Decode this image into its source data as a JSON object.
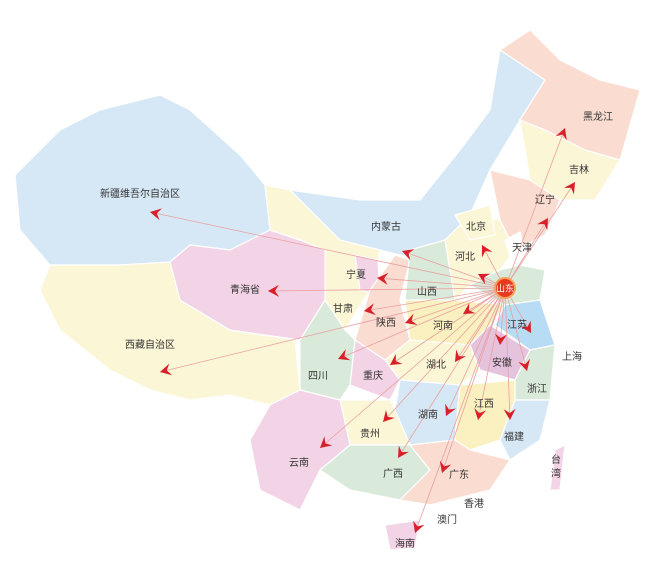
{
  "hub": {
    "name": "山东",
    "color": "#e8381f"
  },
  "arrow_color": "#d9202a",
  "line_color": "#e9a0a0",
  "provinces": [
    {
      "id": "xinjiang",
      "label": "新疆维吾尔自治区",
      "color": "#d6e8f5",
      "arrow": true
    },
    {
      "id": "tibet",
      "label": "西藏自治区",
      "color": "#fbf6d6",
      "arrow": true
    },
    {
      "id": "qinghai",
      "label": "青海省",
      "color": "#f3d4e6",
      "arrow": true
    },
    {
      "id": "gansu",
      "label": "甘肃",
      "color": "#fbf6d6",
      "arrow": true
    },
    {
      "id": "neimenggu",
      "label": "内蒙古",
      "color": "#d6e8f5",
      "arrow": true
    },
    {
      "id": "heilongjiang",
      "label": "黑龙江",
      "color": "#fadcd0",
      "arrow": true
    },
    {
      "id": "jilin",
      "label": "吉林",
      "color": "#fbf6d6",
      "arrow": true
    },
    {
      "id": "liaoning",
      "label": "辽宁",
      "color": "#fadcd0",
      "arrow": true
    },
    {
      "id": "ningxia",
      "label": "宁夏",
      "color": "#f3d4e6",
      "arrow": true
    },
    {
      "id": "shaanxi",
      "label": "陕西",
      "color": "#fadcd0",
      "arrow": true
    },
    {
      "id": "shanxi",
      "label": "山西",
      "color": "#d9eadb",
      "arrow": false
    },
    {
      "id": "hebei",
      "label": "河北",
      "color": "#fbf6d6",
      "arrow": true
    },
    {
      "id": "beijing",
      "label": "北京",
      "color": "#fbf6d6",
      "arrow": true
    },
    {
      "id": "tianjin",
      "label": "天津",
      "color": "#ffffff",
      "arrow": false
    },
    {
      "id": "shandong",
      "label": "",
      "color": "#d9eadb",
      "arrow": false
    },
    {
      "id": "henan",
      "label": "河南",
      "color": "#fbf0c0",
      "arrow": true
    },
    {
      "id": "jiangsu",
      "label": "江苏",
      "color": "#b9dcf5",
      "arrow": true
    },
    {
      "id": "anhui",
      "label": "安徽",
      "color": "#e6c3dd",
      "arrow": true
    },
    {
      "id": "zhejiang",
      "label": "浙江",
      "color": "#d9eadb",
      "arrow": true
    },
    {
      "id": "shanghai",
      "label": "上海",
      "color": "#ffffff",
      "arrow": false
    },
    {
      "id": "hubei",
      "label": "湖北",
      "color": "#fbf6d6",
      "arrow": true
    },
    {
      "id": "chongqing",
      "label": "重庆",
      "color": "#f3d4e6",
      "arrow": true
    },
    {
      "id": "sichuan",
      "label": "四川",
      "color": "#d9eadb",
      "arrow": true
    },
    {
      "id": "hunan",
      "label": "湖南",
      "color": "#d6e8f5",
      "arrow": true
    },
    {
      "id": "jiangxi",
      "label": "江西",
      "color": "#fbf0c0",
      "arrow": true
    },
    {
      "id": "fujian",
      "label": "福建",
      "color": "#d6e8f5",
      "arrow": true
    },
    {
      "id": "guizhou",
      "label": "贵州",
      "color": "#fbf6d6",
      "arrow": true
    },
    {
      "id": "yunnan",
      "label": "云南",
      "color": "#f3d4e6",
      "arrow": true
    },
    {
      "id": "guangxi",
      "label": "广西",
      "color": "#d9eadb",
      "arrow": true
    },
    {
      "id": "guangdong",
      "label": "广东",
      "color": "#fadcd0",
      "arrow": true
    },
    {
      "id": "hongkong",
      "label": "香港",
      "color": "#ffffff",
      "arrow": false
    },
    {
      "id": "macau",
      "label": "澳门",
      "color": "#ffffff",
      "arrow": false
    },
    {
      "id": "hainan",
      "label": "海南",
      "color": "#f3d4e6",
      "arrow": true
    },
    {
      "id": "taiwan",
      "label": "台\n湾",
      "color": "#f3d4e6",
      "arrow": false
    }
  ]
}
